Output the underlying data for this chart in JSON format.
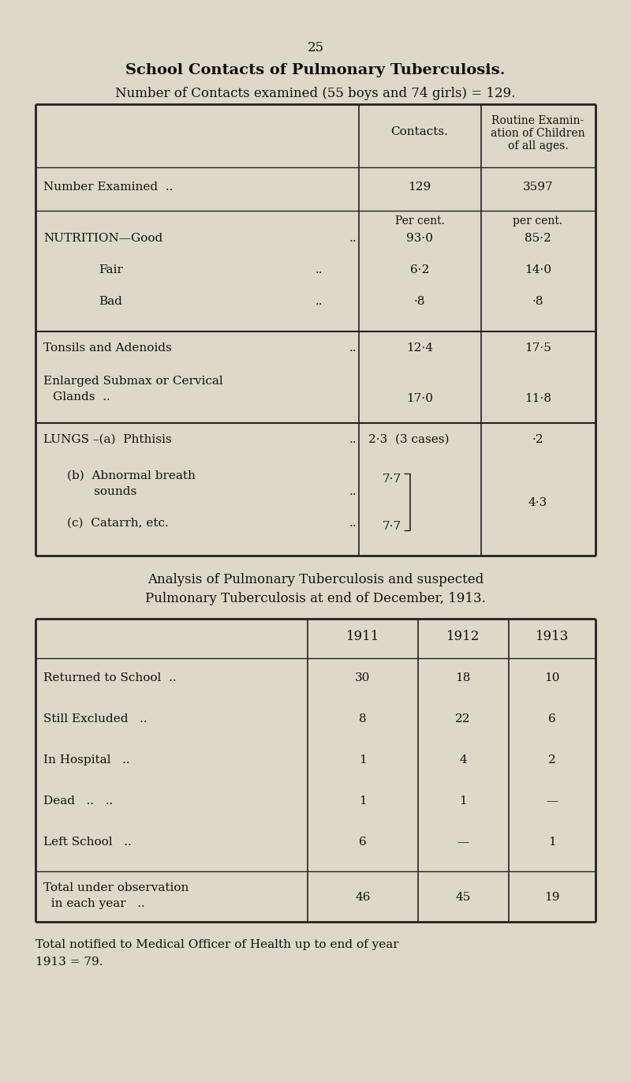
{
  "bg_color": "#ddd8c8",
  "text_color": "#111111",
  "page_number": "25",
  "title1": "School Contacts of Pulmonary Tuberculosis.",
  "title2": "Number of Contacts examined (55 boys and 74 girls) = 129.",
  "t1_header_col2": "Contacts.",
  "t1_header_col3": "Routine Examin-\nation of Children\nof all ages.",
  "num_examined_label": "Number Examined  ..",
  "num_examined_c2": "129",
  "num_examined_c3": "3597",
  "per_cent_c2": "Per cent.",
  "per_cent_c3": "per cent.",
  "nutr_good_label": "NUTRITION—Good",
  "nutr_good_dots": "..",
  "nutr_good_c2": "93·0",
  "nutr_good_c3": "85·2",
  "nutr_fair_label": "Fair",
  "nutr_fair_dots": "..",
  "nutr_fair_c2": "6·2",
  "nutr_fair_c3": "14·0",
  "nutr_bad_label": "Bad",
  "nutr_bad_dots": "..",
  "nutr_bad_c2": "·8",
  "nutr_bad_c3": "·8",
  "tons_label": "Tonsils and Adenoids",
  "tons_dots": "..",
  "tons_c2": "12·4",
  "tons_c3": "17·5",
  "enl_label1": "Enlarged Submax or Cervical",
  "enl_label2": "Glands  ..",
  "enl_label2_dots": "..",
  "enl_c2": "17·0",
  "enl_c3": "11·8",
  "lungs_a_label": "LUNGS –(a)  Phthisis",
  "lungs_a_dots": "..",
  "lungs_a_c2": "2·3  (3 cases)",
  "lungs_a_c3": "·2",
  "lungs_b_label1": "(b)  Abnormal breath",
  "lungs_b_label2": "sounds",
  "lungs_b_dots": "..",
  "lungs_b_c2": "7·7",
  "lungs_b_c3": "4·3",
  "lungs_c_label": "(c)  Catarrh, etc.",
  "lungs_c_dots": "..",
  "lungs_c_c2": "7·7",
  "analysis_title1": "Analysis of Pulmonary Tuberculosis and suspected",
  "analysis_title2": "Pulmonary Tuberculosis at end of December, 1913.",
  "t2_hdr_1911": "1911",
  "t2_hdr_1912": "1912",
  "t2_hdr_1913": "1913",
  "t2_rows": [
    [
      "Returned to School  ..",
      "30",
      "18",
      "10"
    ],
    [
      "Still Excluded   ..",
      "8",
      "22",
      "6"
    ],
    [
      "In Hospital   ..",
      "1",
      "4",
      "2"
    ],
    [
      "Dead   ..   ..",
      "1",
      "1",
      "—"
    ],
    [
      "Left School   ..",
      "6",
      "—",
      "1"
    ]
  ],
  "t2_total_label1": "Total under observation",
  "t2_total_label2": "in each year   ..",
  "t2_totals": [
    "46",
    "45",
    "19"
  ],
  "footer1": "Total notified to Medical Officer of Health up to end of year",
  "footer2": "1913 = 79."
}
